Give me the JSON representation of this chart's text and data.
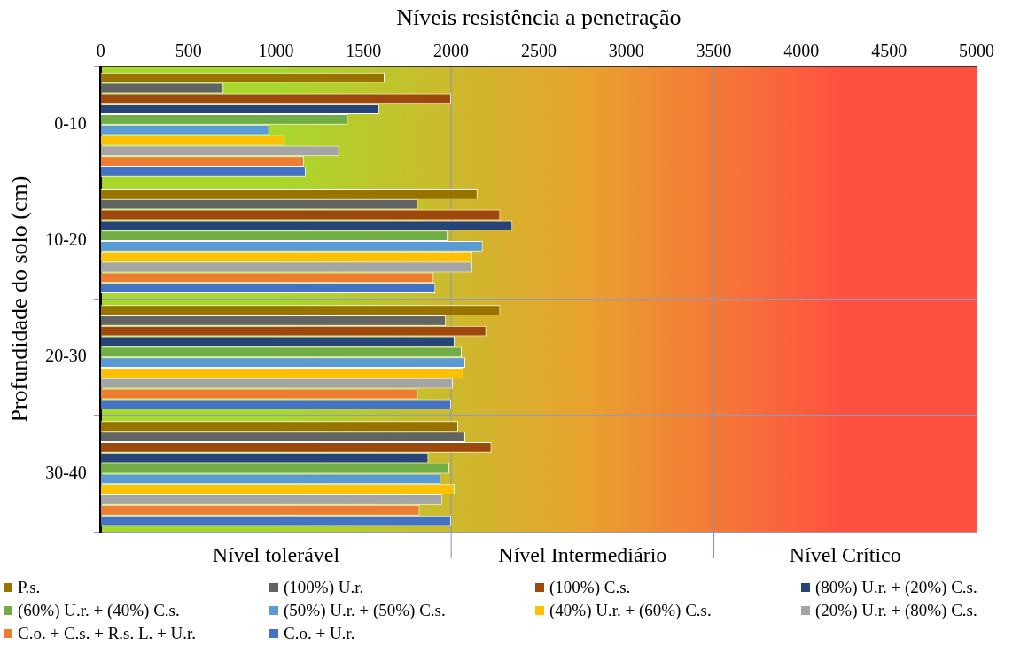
{
  "chart_data": {
    "type": "bar",
    "orientation": "horizontal",
    "xlabel": "Níveis resistência a penetração",
    "ylabel": "Profundidade do solo (cm)",
    "categories": [
      "0-10",
      "10-20",
      "20-30",
      "30-40"
    ],
    "xlim": [
      0,
      5000
    ],
    "xticks": [
      0,
      500,
      1000,
      1500,
      2000,
      2500,
      3000,
      3500,
      4000,
      4500,
      5000
    ],
    "grid": "y",
    "legend": "bottom",
    "ref_lines": [
      {
        "axis": "x",
        "value": 2000,
        "color": "#8090b0"
      },
      {
        "axis": "x",
        "value": 3500,
        "color": "#8090b0"
      }
    ],
    "bands": [
      {
        "axis": "x",
        "from": 0,
        "to": 2000,
        "label": "Nível tolerável",
        "color": "#a8d82c"
      },
      {
        "axis": "x",
        "from": 2000,
        "to": 3500,
        "label": "Nível Intermediário",
        "color": "#e8a32e"
      },
      {
        "axis": "x",
        "from": 3500,
        "to": 5000,
        "label": "Nível Crítico",
        "color": "#ff5040"
      }
    ],
    "series": [
      {
        "name": "P.s.",
        "color": "#997300",
        "values": [
          1620,
          2150,
          2280,
          2040
        ]
      },
      {
        "name": "(100%) U.r.",
        "color": "#636363",
        "values": [
          700,
          1810,
          1970,
          2080
        ]
      },
      {
        "name": "(100%) C.s.",
        "color": "#9e480e",
        "values": [
          2000,
          2280,
          2200,
          2230
        ]
      },
      {
        "name": "(80%) U.r. + (20%) C.s.",
        "color": "#264478",
        "values": [
          1590,
          2350,
          2020,
          1870
        ]
      },
      {
        "name": "(60%) U.r. + (40%) C.s.",
        "color": "#70ad47",
        "values": [
          1410,
          1980,
          2060,
          1990
        ]
      },
      {
        "name": "(50%) U.r. + (50%) C.s.",
        "color": "#5b9bd5",
        "values": [
          960,
          2180,
          2080,
          1940
        ]
      },
      {
        "name": "(40%) U.r. + (60%) C.s.",
        "color": "#ffc000",
        "values": [
          1050,
          2120,
          2070,
          2020
        ]
      },
      {
        "name": "(20%) U.r. + (80%) C.s.",
        "color": "#a5a5a5",
        "values": [
          1360,
          2120,
          2010,
          1950
        ]
      },
      {
        "name": "C.o. + C.s. + R.s. L. + U.r.",
        "color": "#ed7d31",
        "values": [
          1160,
          1900,
          1810,
          1820
        ]
      },
      {
        "name": "C.o. + U.r.",
        "color": "#4472c4",
        "values": [
          1170,
          1910,
          2000,
          2000
        ]
      }
    ]
  }
}
